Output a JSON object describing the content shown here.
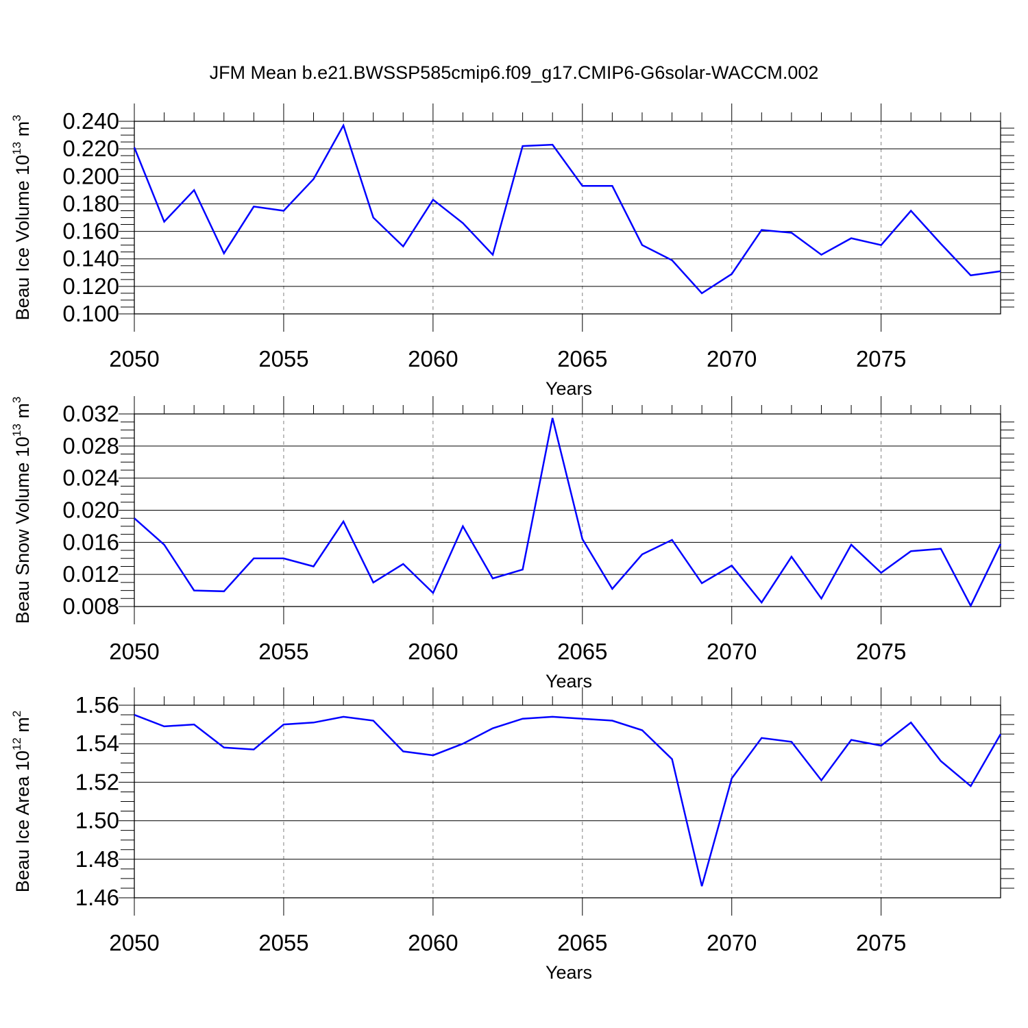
{
  "title": "JFM Mean b.e21.BWSSP585cmip6.f09_g17.CMIP6-G6solar-WACCM.002",
  "colors": {
    "line": "#0000ff",
    "axis": "#000000",
    "grid": "#7f7f7f"
  },
  "chart_data": [
    {
      "type": "line",
      "xlabel": "Years",
      "ylabel": {
        "text": "Beau Ice Volume 10",
        "exp": "13",
        "unit": " m",
        "unit_exp": "3"
      },
      "xlim": [
        2050,
        2079
      ],
      "ylim": [
        0.1,
        0.24
      ],
      "x_ticks": [
        2050,
        2055,
        2060,
        2065,
        2070,
        2075
      ],
      "x_tick_labels": [
        "2050",
        "2055",
        "2060",
        "2065",
        "2070",
        "2075"
      ],
      "y_ticks": [
        0.1,
        0.12,
        0.14,
        0.16,
        0.18,
        0.2,
        0.22,
        0.24
      ],
      "y_tick_labels": [
        "0.100",
        "0.120",
        "0.140",
        "0.160",
        "0.180",
        "0.200",
        "0.220",
        "0.240"
      ],
      "y_minor_step": 0.005,
      "grid": "vertical dashed at major x ticks",
      "x": [
        2050,
        2051,
        2052,
        2053,
        2054,
        2055,
        2056,
        2057,
        2058,
        2059,
        2060,
        2061,
        2062,
        2063,
        2064,
        2065,
        2066,
        2067,
        2068,
        2069,
        2070,
        2071,
        2072,
        2073,
        2074,
        2075,
        2076,
        2077,
        2078,
        2079
      ],
      "values": [
        0.221,
        0.167,
        0.19,
        0.144,
        0.178,
        0.175,
        0.198,
        0.237,
        0.17,
        0.149,
        0.183,
        0.166,
        0.143,
        0.222,
        0.223,
        0.193,
        0.193,
        0.15,
        0.139,
        0.115,
        0.129,
        0.161,
        0.159,
        0.143,
        0.155,
        0.15,
        0.175,
        0.151,
        0.128,
        0.131
      ]
    },
    {
      "type": "line",
      "xlabel": "Years",
      "ylabel": {
        "text": "Beau Snow Volume 10",
        "exp": "13",
        "unit": " m",
        "unit_exp": "3"
      },
      "xlim": [
        2050,
        2079
      ],
      "ylim": [
        0.008,
        0.032
      ],
      "x_ticks": [
        2050,
        2055,
        2060,
        2065,
        2070,
        2075
      ],
      "x_tick_labels": [
        "2050",
        "2055",
        "2060",
        "2065",
        "2070",
        "2075"
      ],
      "y_ticks": [
        0.008,
        0.012,
        0.016,
        0.02,
        0.024,
        0.028,
        0.032
      ],
      "y_tick_labels": [
        "0.008",
        "0.012",
        "0.016",
        "0.020",
        "0.024",
        "0.028",
        "0.032"
      ],
      "y_minor_step": 0.001,
      "grid": "vertical dashed at major x ticks",
      "x": [
        2050,
        2051,
        2052,
        2053,
        2054,
        2055,
        2056,
        2057,
        2058,
        2059,
        2060,
        2061,
        2062,
        2063,
        2064,
        2065,
        2066,
        2067,
        2068,
        2069,
        2070,
        2071,
        2072,
        2073,
        2074,
        2075,
        2076,
        2077,
        2078,
        2079
      ],
      "values": [
        0.019,
        0.0157,
        0.01,
        0.0099,
        0.014,
        0.014,
        0.013,
        0.0186,
        0.011,
        0.0133,
        0.0097,
        0.018,
        0.0115,
        0.0126,
        0.0315,
        0.0164,
        0.0102,
        0.0145,
        0.0163,
        0.0109,
        0.0131,
        0.0085,
        0.0142,
        0.009,
        0.0157,
        0.0122,
        0.0149,
        0.0152,
        0.0081,
        0.0158
      ]
    },
    {
      "type": "line",
      "xlabel": "Years",
      "ylabel": {
        "text": "Beau Ice Area 10",
        "exp": "12",
        "unit": " m",
        "unit_exp": "2"
      },
      "xlim": [
        2050,
        2079
      ],
      "ylim": [
        1.46,
        1.56
      ],
      "x_ticks": [
        2050,
        2055,
        2060,
        2065,
        2070,
        2075
      ],
      "x_tick_labels": [
        "2050",
        "2055",
        "2060",
        "2065",
        "2070",
        "2075"
      ],
      "y_ticks": [
        1.46,
        1.48,
        1.5,
        1.52,
        1.54,
        1.56
      ],
      "y_tick_labels": [
        "1.46",
        "1.48",
        "1.50",
        "1.52",
        "1.54",
        "1.56"
      ],
      "y_minor_step": 0.005,
      "grid": "vertical dashed at major x ticks",
      "x": [
        2050,
        2051,
        2052,
        2053,
        2054,
        2055,
        2056,
        2057,
        2058,
        2059,
        2060,
        2061,
        2062,
        2063,
        2064,
        2065,
        2066,
        2067,
        2068,
        2069,
        2070,
        2071,
        2072,
        2073,
        2074,
        2075,
        2076,
        2077,
        2078,
        2079
      ],
      "values": [
        1.555,
        1.549,
        1.55,
        1.538,
        1.537,
        1.55,
        1.551,
        1.554,
        1.552,
        1.536,
        1.534,
        1.54,
        1.548,
        1.553,
        1.554,
        1.553,
        1.552,
        1.547,
        1.532,
        1.466,
        1.522,
        1.543,
        1.541,
        1.521,
        1.542,
        1.539,
        1.551,
        1.531,
        1.518,
        1.545
      ]
    }
  ]
}
